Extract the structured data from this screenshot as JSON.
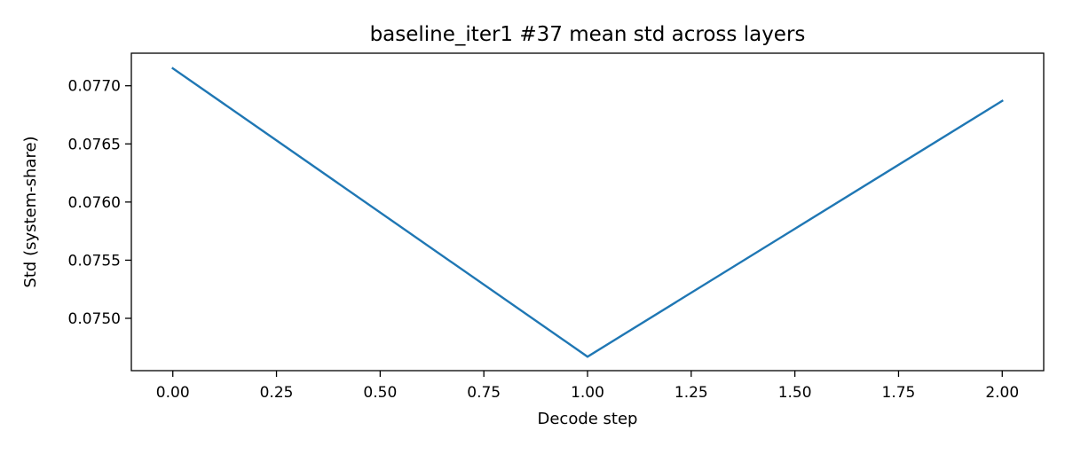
{
  "chart_data": {
    "type": "line",
    "title": "baseline_iter1 #37 mean std across layers",
    "xlabel": "Decode step",
    "ylabel": "Std (system-share)",
    "xlim": [
      -0.1,
      2.1
    ],
    "ylim": [
      0.07455,
      0.07728
    ],
    "xticks": [
      0.0,
      0.25,
      0.5,
      0.75,
      1.0,
      1.25,
      1.5,
      1.75,
      2.0
    ],
    "xtick_labels": [
      "0.00",
      "0.25",
      "0.50",
      "0.75",
      "1.00",
      "1.25",
      "1.50",
      "1.75",
      "2.00"
    ],
    "yticks": [
      0.075,
      0.0755,
      0.076,
      0.0765,
      0.077
    ],
    "ytick_labels": [
      "0.0750",
      "0.0755",
      "0.0760",
      "0.0765",
      "0.0770"
    ],
    "grid": false,
    "legend": "none",
    "series": [
      {
        "color": "#1f77b4",
        "x": [
          0.0,
          1.0,
          2.0
        ],
        "y": [
          0.07715,
          0.07467,
          0.07687
        ]
      }
    ]
  }
}
